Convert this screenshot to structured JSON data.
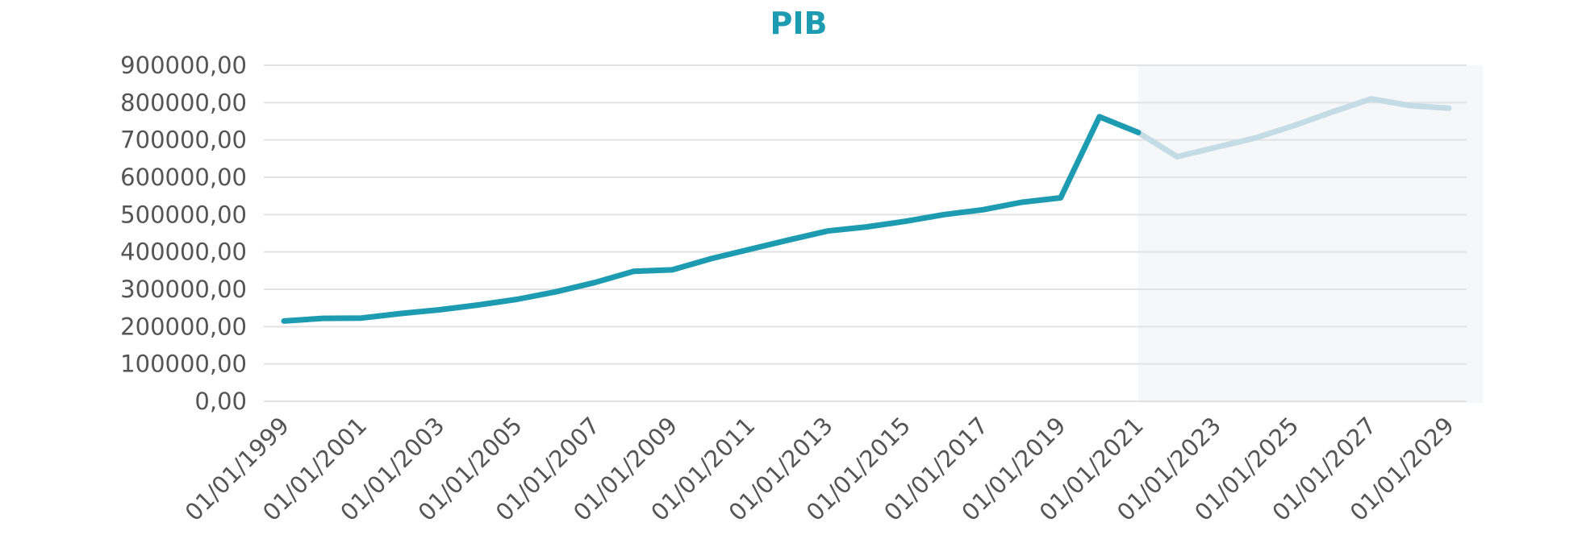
{
  "chart_data": {
    "type": "line",
    "title": "PIB",
    "xlabel": "",
    "ylabel": "",
    "ylim": [
      0,
      900000
    ],
    "yticks": [
      "0,00",
      "100000,00",
      "200000,00",
      "300000,00",
      "400000,00",
      "500000,00",
      "600000,00",
      "700000,00",
      "800000,00",
      "900000,00"
    ],
    "xtick_labels": [
      "01/01/1999",
      "01/01/2001",
      "01/01/2003",
      "01/01/2005",
      "01/01/2007",
      "01/01/2009",
      "01/01/2011",
      "01/01/2013",
      "01/01/2015",
      "01/01/2017",
      "01/01/2019",
      "01/01/2021",
      "01/01/2023",
      "01/01/2025",
      "01/01/2027",
      "01/01/2029"
    ],
    "x": [
      "01/01/1999",
      "01/01/2000",
      "01/01/2001",
      "01/01/2002",
      "01/01/2003",
      "01/01/2004",
      "01/01/2005",
      "01/01/2006",
      "01/01/2007",
      "01/01/2008",
      "01/01/2009",
      "01/01/2010",
      "01/01/2011",
      "01/01/2012",
      "01/01/2013",
      "01/01/2014",
      "01/01/2015",
      "01/01/2016",
      "01/01/2017",
      "01/01/2018",
      "01/01/2019",
      "01/01/2020",
      "01/01/2021",
      "01/01/2022",
      "01/01/2023",
      "01/01/2024",
      "01/01/2025",
      "01/01/2026",
      "01/01/2027",
      "01/01/2028",
      "01/01/2029"
    ],
    "series": [
      {
        "values": [
          215000,
          222000,
          223000,
          235000,
          245000,
          258000,
          273000,
          293000,
          318000,
          348000,
          352000,
          382000,
          407000,
          432000,
          456000,
          467000,
          482000,
          500000,
          513000,
          533000,
          545000,
          762000,
          720000,
          655000,
          680000,
          705000,
          738000,
          775000,
          810000,
          792000,
          785000
        ],
        "historical_until": "01/01/2021",
        "colors": {
          "historical": "#1c9bb1",
          "forecast": "#c3dce5"
        }
      }
    ],
    "forecast_region": {
      "from": "01/01/2021",
      "to": "01/01/2029",
      "shade_color": "#f6f7f9"
    },
    "grid": true,
    "legend": "none",
    "colors": {
      "title": "#1c9bb1",
      "grid": "#e2e2e2",
      "axis_text": "#555555"
    }
  }
}
